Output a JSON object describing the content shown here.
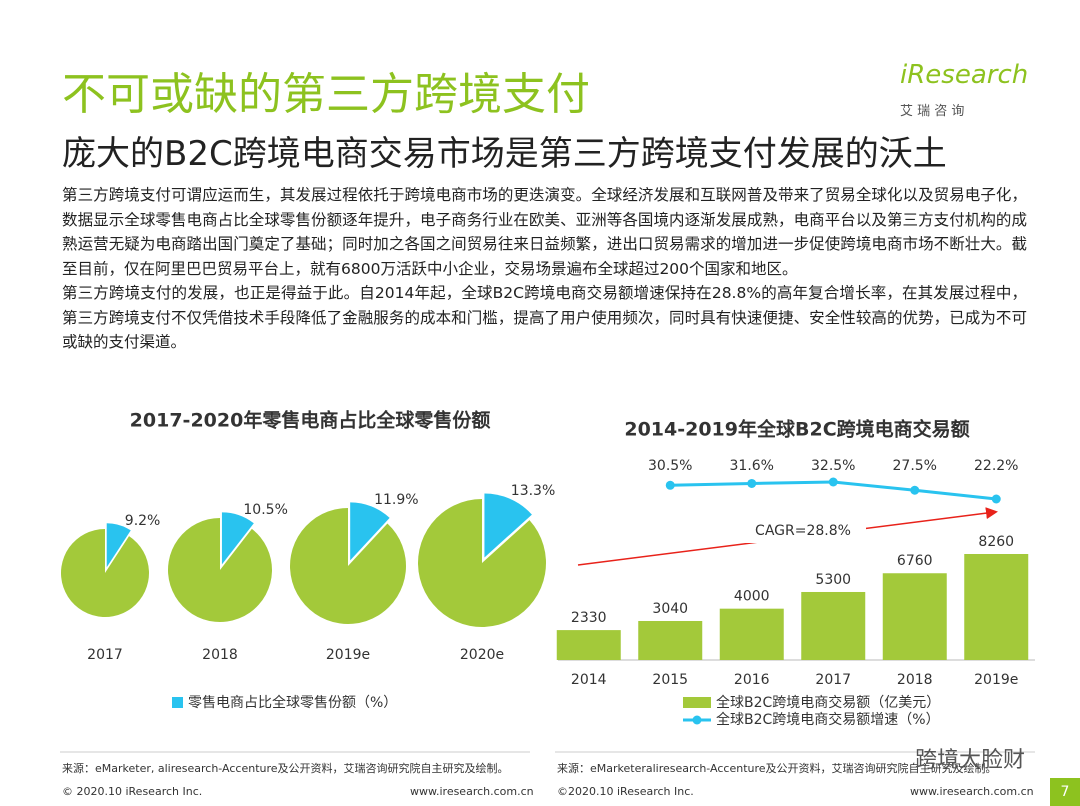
{
  "header": {
    "title": "不可或缺的第三方跨境支付",
    "subtitle": "庞大的B2C跨境电商交易市场是第三方跨境支付发展的沃土",
    "logo": "iResearch",
    "logo_sub": "艾 瑞 咨 询"
  },
  "body": [
    "第三方跨境支付可谓应运而生，其发展过程依托于跨境电商市场的更迭演变。全球经济发展和互联网普及带来了贸易全球化以及贸易电子化，数据显示全球零售电商占比全球零售份额逐年提升，电子商务行业在欧美、亚洲等各国境内逐渐发展成熟，电商平台以及第三方支付机构的成熟运营无疑为电商踏出国门奠定了基础；同时加之各国之间贸易往来日益频繁，进出口贸易需求的增加进一步促使跨境电商市场不断壮大。截至目前，仅在阿里巴巴贸易平台上，就有6800万活跃中小企业，交易场景遍布全球超过200个国家和地区。",
    "第三方跨境支付的发展，也正是得益于此。自2014年起，全球B2C跨境电商交易额增速保持在28.8%的高年复合增长率，在其发展过程中，第三方跨境支付不仅凭借技术手段降低了金融服务的成本和门槛，提高了用户使用频次，同时具有快速便捷、安全性较高的优势，已成为不可或缺的支付渠道。"
  ],
  "chart_data": [
    {
      "type": "pie",
      "title": "2017-2020年零售电商占比全球零售份额",
      "categories": [
        "2017",
        "2018",
        "2019e",
        "2020e"
      ],
      "series": [
        {
          "name": "零售电商占比全球零售份额（%）",
          "color": "#29c3ef",
          "values": [
            9.2,
            10.5,
            11.9,
            13.3
          ],
          "value_labels": [
            "9.2%",
            "10.5%",
            "11.9%",
            "13.3%"
          ]
        }
      ],
      "rest_color": "#a3c93a"
    },
    {
      "type": "bar",
      "title": "2014-2019年全球B2C跨境电商交易额",
      "categories": [
        "2014",
        "2015",
        "2016",
        "2017",
        "2018",
        "2019e"
      ],
      "series": [
        {
          "name": "全球B2C跨境电商交易额（亿美元）",
          "color": "#a3c93a",
          "values": [
            2330,
            3040,
            4000,
            5300,
            6760,
            8260
          ]
        },
        {
          "name": "全球B2C跨境电商交易额增速（%）",
          "color": "#29c3ef",
          "axis": "y2",
          "values": [
            null,
            30.5,
            31.6,
            32.5,
            27.5,
            22.2
          ],
          "value_labels": [
            null,
            "30.5%",
            "31.6%",
            "32.5%",
            "27.5%",
            "22.2%"
          ]
        }
      ],
      "annotation": "CAGR=28.8%",
      "annotation_color": "#e8221a"
    }
  ],
  "footer": {
    "source_left": "来源：eMarketer, aliresearch-Accenture及公开资料，艾瑞咨询研究院自主研究及绘制。",
    "source_right": "来源：eMarketeraliresearch-Accenture及公开资料，艾瑞咨询研究院自主研究及绘制。",
    "copyright_left": "© 2020.10 iResearch Inc.",
    "site_left": "www.iresearch.com.cn",
    "copyright_right": "©2020.10 iResearch Inc.",
    "site_right": "www.iresearch.com.cn",
    "watermark": "跨境大脸财",
    "page": "7"
  }
}
